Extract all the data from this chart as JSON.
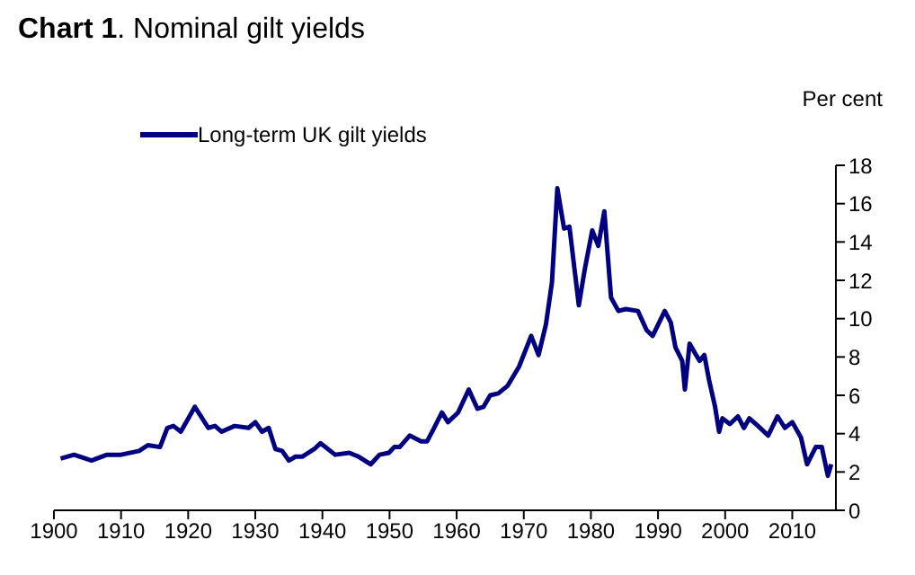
{
  "chart_data": {
    "type": "line",
    "title": "Chart 1. Nominal gilt yields",
    "ylabel": "Per cent",
    "xlim": [
      1900,
      2016.5
    ],
    "xticks": [
      1900,
      1910,
      1920,
      1930,
      1940,
      1950,
      1960,
      1970,
      1980,
      1990,
      2000,
      2010
    ],
    "ylim": [
      0,
      18
    ],
    "yticks": [
      0,
      2,
      4,
      6,
      8,
      10,
      12,
      14,
      16,
      18
    ],
    "grid": false,
    "legend": "top left",
    "marker": "none",
    "line_style": "solid",
    "series": [
      {
        "name": "Long-term UK gilt yields",
        "color": "#000080",
        "x": [
          1901,
          1903,
          1905.6,
          1907.9,
          1910,
          1912.7,
          1914,
          1915.8,
          1916.9,
          1917.8,
          1918.9,
          1921,
          1923,
          1924,
          1925,
          1926.9,
          1929,
          1930,
          1931,
          1932,
          1933,
          1934,
          1935,
          1936,
          1937,
          1938.8,
          1939.7,
          1941.9,
          1944,
          1945.4,
          1947.2,
          1948.5,
          1949.9,
          1950.7,
          1951.5,
          1953,
          1954.7,
          1955.6,
          1956.5,
          1957.8,
          1958.7,
          1960.2,
          1961.8,
          1963.1,
          1964,
          1965,
          1966.2,
          1967.6,
          1969.3,
          1971.1,
          1972.2,
          1973.3,
          1974.2,
          1975,
          1976,
          1976.8,
          1978.2,
          1979.1,
          1980.2,
          1981.1,
          1982,
          1983,
          1984.1,
          1985.2,
          1987,
          1988.3,
          1989.2,
          1991,
          1991.9,
          1992.6,
          1993.6,
          1994,
          1994.7,
          1995.5,
          1996.2,
          1996.9,
          1997.6,
          1998.5,
          1999.1,
          1999.6,
          2000.7,
          2001.9,
          2002.8,
          2003.6,
          2004.9,
          2006.4,
          2007.8,
          2008.9,
          2010,
          2011.3,
          2012.2,
          2013.5,
          2014.4,
          2015.3,
          2015.8
        ],
        "values": [
          2.7,
          2.9,
          2.6,
          2.9,
          2.9,
          3.1,
          3.4,
          3.3,
          4.3,
          4.4,
          4.1,
          5.4,
          4.3,
          4.4,
          4.1,
          4.4,
          4.3,
          4.6,
          4.1,
          4.3,
          3.2,
          3.1,
          2.6,
          2.8,
          2.8,
          3.2,
          3.5,
          2.9,
          3.0,
          2.8,
          2.4,
          2.9,
          3.0,
          3.3,
          3.3,
          3.9,
          3.6,
          3.6,
          4.2,
          5.1,
          4.6,
          5.1,
          6.3,
          5.3,
          5.4,
          6.0,
          6.1,
          6.5,
          7.5,
          9.1,
          8.1,
          9.7,
          11.9,
          16.8,
          14.7,
          14.8,
          10.7,
          12.6,
          14.6,
          13.8,
          15.6,
          11.1,
          10.4,
          10.5,
          10.4,
          9.4,
          9.1,
          10.4,
          9.8,
          8.5,
          7.8,
          6.3,
          8.7,
          8.2,
          7.8,
          8.1,
          6.8,
          5.4,
          4.1,
          4.8,
          4.5,
          4.9,
          4.3,
          4.8,
          4.4,
          3.9,
          4.9,
          4.3,
          4.6,
          3.8,
          2.4,
          3.3,
          3.3,
          1.8,
          2.4
        ]
      }
    ]
  }
}
